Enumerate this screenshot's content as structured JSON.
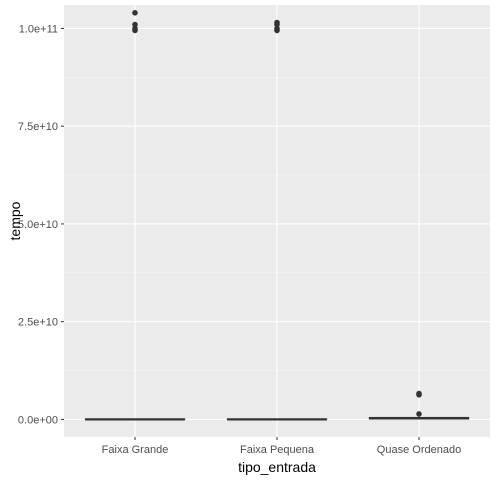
{
  "chart_data": {
    "type": "boxplot",
    "xlabel": "tipo_entrada",
    "ylabel": "tempo",
    "categories": [
      "Faixa Grande",
      "Faixa Pequena",
      "Quase Ordenado"
    ],
    "ylim": [
      -4500000000.0,
      106000000000.0
    ],
    "y_ticks": [
      0,
      25000000000.0,
      50000000000.0,
      75000000000.0,
      100000000000.0
    ],
    "y_tick_labels": [
      "0.0e+00",
      "2.5e+10",
      "5.0e+10",
      "7.5e+10",
      "1.0e+11"
    ],
    "grid": true,
    "boxes": [
      {
        "category": "Faixa Grande",
        "q1": 0,
        "median": 0,
        "q3": 100000000.0,
        "whisker_low": 0,
        "whisker_high": 100000000.0,
        "outliers": [
          99500000000.0,
          100000000000.0,
          101000000000.0,
          104000000000.0
        ]
      },
      {
        "category": "Faixa Pequena",
        "q1": 0,
        "median": 0,
        "q3": 100000000.0,
        "whisker_low": 0,
        "whisker_high": 100000000.0,
        "outliers": [
          99500000000.0,
          100000000000.0,
          101000000000.0,
          101500000000.0
        ]
      },
      {
        "category": "Quase Ordenado",
        "q1": 100000000.0,
        "median": 250000000.0,
        "q3": 500000000.0,
        "whisker_low": 0,
        "whisker_high": 800000000.0,
        "outliers": [
          1400000000.0,
          6300000000.0,
          6600000000.0
        ]
      }
    ],
    "colors": {
      "panel": "#ebebeb",
      "grid_major": "#ffffff",
      "grid_minor": "#f5f5f5",
      "box_line": "#333333",
      "box_fill": "#ffffff",
      "outlier": "#333333"
    }
  }
}
